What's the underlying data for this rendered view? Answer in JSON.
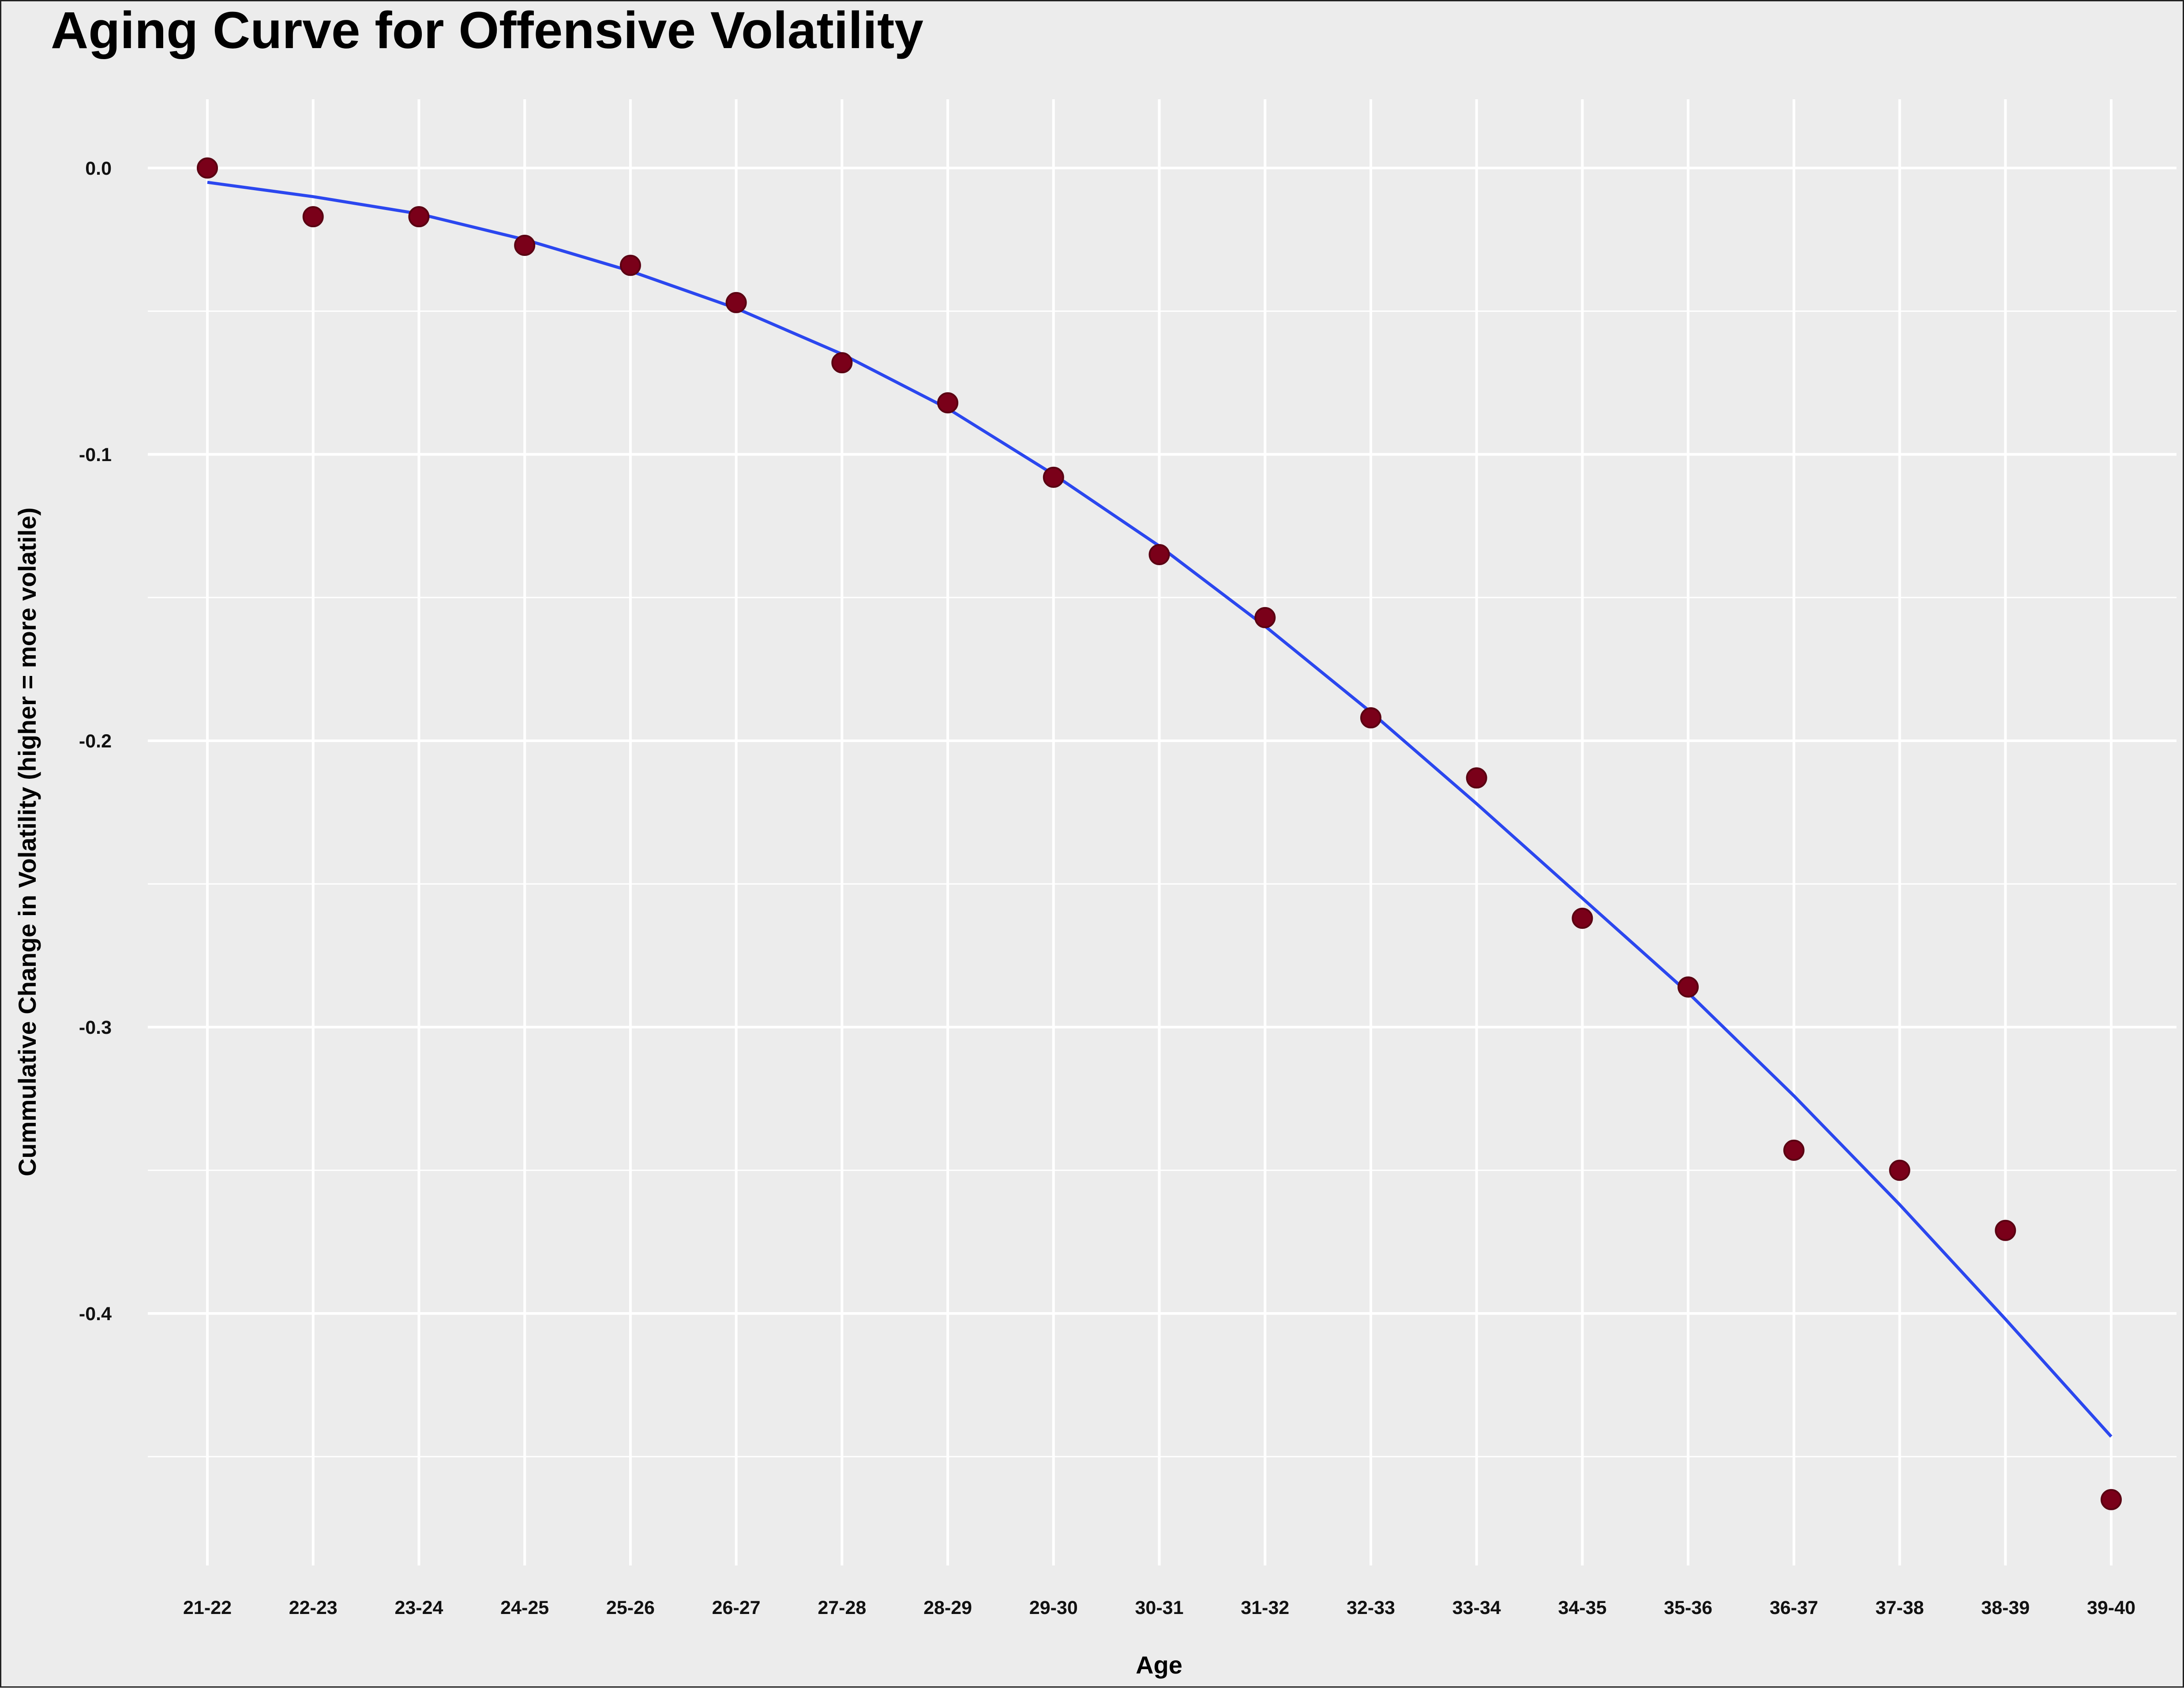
{
  "chart_data": {
    "type": "scatter",
    "title": "Aging Curve for Offensive Volatility",
    "xlabel": "Age",
    "ylabel": "Cummulative Change in Volatility (higher = more volatile)",
    "categories": [
      "21-22",
      "22-23",
      "23-24",
      "24-25",
      "25-26",
      "26-27",
      "27-28",
      "28-29",
      "29-30",
      "30-31",
      "31-32",
      "32-33",
      "33-34",
      "34-35",
      "35-36",
      "36-37",
      "37-38",
      "38-39",
      "39-40"
    ],
    "y_ticks": [
      0.0,
      -0.1,
      -0.2,
      -0.3,
      -0.4
    ],
    "y_tick_labels": [
      "0.0",
      "-0.1",
      "-0.2",
      "-0.3",
      "-0.4"
    ],
    "ylim": [
      -0.488,
      0.024
    ],
    "grid": true,
    "legend": "none",
    "series": [
      {
        "kind": "points",
        "values": [
          0.0,
          -0.017,
          -0.017,
          -0.027,
          -0.034,
          -0.047,
          -0.068,
          -0.082,
          -0.108,
          -0.135,
          -0.157,
          -0.192,
          -0.213,
          -0.262,
          -0.286,
          -0.343,
          -0.35,
          -0.371,
          -0.465
        ],
        "color": "#7a0019"
      },
      {
        "kind": "smooth-line",
        "values": [
          -0.005,
          -0.01,
          -0.016,
          -0.025,
          -0.036,
          -0.049,
          -0.065,
          -0.084,
          -0.107,
          -0.132,
          -0.16,
          -0.19,
          -0.222,
          -0.255,
          -0.288,
          -0.324,
          -0.362,
          -0.402,
          -0.443
        ],
        "color": "#2b47ef"
      }
    ]
  }
}
